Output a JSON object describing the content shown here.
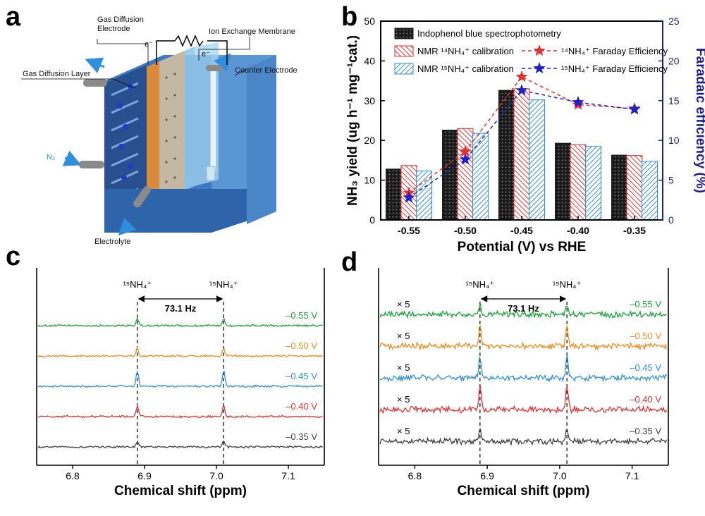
{
  "panel_letters": [
    "a",
    "b",
    "c",
    "d"
  ],
  "colors": {
    "black": "#1a1a1a",
    "red": "#e03232",
    "blue": "#2f8fdc",
    "navy": "#1b1b8f",
    "green": "#1aa33a",
    "orange": "#f08c1e",
    "gray": "#404040"
  },
  "schematic": {
    "labels": {
      "gas_diffusion_electrode": "Gas Diffusion\nElectrode",
      "ion_exchange_membrane": "Ion Exchange Membrane",
      "counter_electrode": "Counter Electrode",
      "gas_diffusion_layer": "Gas Diffusion Layer",
      "electron_left": "e⁻",
      "electron_right": "e⁻",
      "n2": "N₂",
      "electrolyte": "Electrolyte"
    }
  },
  "chart_data": [
    {
      "panel": "b",
      "type": "bar",
      "categories": [
        "-0.55",
        "-0.50",
        "-0.45",
        "-0.40",
        "-0.35"
      ],
      "series": [
        {
          "name": "Indophenol blue spectrophotometry",
          "values": [
            12.8,
            22.6,
            32.6,
            19.3,
            16.3
          ],
          "color": "#1a1a1a"
        },
        {
          "name": "NMR ¹⁴NH₄⁺ calibration",
          "values": [
            13.7,
            23.0,
            33.0,
            18.9,
            16.2
          ],
          "color": "#e03232"
        },
        {
          "name": "NMR ¹⁵NH₄⁺ calibration",
          "values": [
            12.3,
            21.8,
            30.2,
            18.5,
            14.7
          ],
          "color": "#2f8fdc"
        }
      ],
      "line_series": [
        {
          "name": "¹⁴NH₄⁺ Faraday Efficiency",
          "values": [
            3.4,
            8.6,
            18.0,
            14.5,
            14.0
          ],
          "color": "#e03232"
        },
        {
          "name": "¹⁵NH₄⁺ Faraday Efficiency",
          "values": [
            2.8,
            7.6,
            16.3,
            14.8,
            13.9
          ],
          "color": "#2020c8"
        }
      ],
      "xlabel": "Potential (V) vs RHE",
      "ylabel": "NH₃ yield (ug h⁻¹ mg⁻¹cat.)",
      "ylabel2": "Faradaic efficiency (%)",
      "ylim": [
        0,
        50
      ],
      "ylim2": [
        0,
        25
      ],
      "yticks": [
        0,
        10,
        20,
        30,
        40,
        50
      ],
      "yticks2": [
        0,
        5,
        10,
        15,
        20,
        25
      ]
    },
    {
      "panel": "c",
      "type": "line",
      "xlabel": "Chemical shift (ppm)",
      "xlim": [
        6.75,
        7.15
      ],
      "xticks": [
        "6.8",
        "6.9",
        "7.0",
        "7.1"
      ],
      "peaks_ppm": [
        6.89,
        7.01
      ],
      "peak_label": "¹⁵NH₄⁺",
      "splitting_label": "73.1 Hz",
      "traces": [
        {
          "label": "–0.55 V",
          "rel_height": 0.45,
          "color": "#1aa33a"
        },
        {
          "label": "–0.50 V",
          "rel_height": 0.5,
          "color": "#f08c1e"
        },
        {
          "label": "–0.45 V",
          "rel_height": 1.0,
          "color": "#2f8fdc"
        },
        {
          "label": "–0.40 V",
          "rel_height": 0.7,
          "color": "#e03232"
        },
        {
          "label": "–0.35 V",
          "rel_height": 0.35,
          "color": "#404040"
        }
      ]
    },
    {
      "panel": "d",
      "type": "line",
      "xlabel": "Chemical shift (ppm)",
      "xlim": [
        6.75,
        7.15
      ],
      "xticks": [
        "6.8",
        "6.9",
        "7.0",
        "7.1"
      ],
      "peaks_ppm": [
        6.89,
        7.01
      ],
      "peak_label": "¹⁵NH₄⁺",
      "splitting_label": "73.1 Hz",
      "scale_label": "× 5",
      "traces": [
        {
          "label": "–0.55 V",
          "rel_height": 0.45,
          "color": "#1aa33a"
        },
        {
          "label": "–0.50 V",
          "rel_height": 1.0,
          "color": "#f08c1e"
        },
        {
          "label": "–0.45 V",
          "rel_height": 1.1,
          "color": "#2f8fdc"
        },
        {
          "label": "–0.40 V",
          "rel_height": 1.2,
          "color": "#e03232"
        },
        {
          "label": "–0.35 V",
          "rel_height": 0.65,
          "color": "#404040"
        }
      ]
    }
  ]
}
